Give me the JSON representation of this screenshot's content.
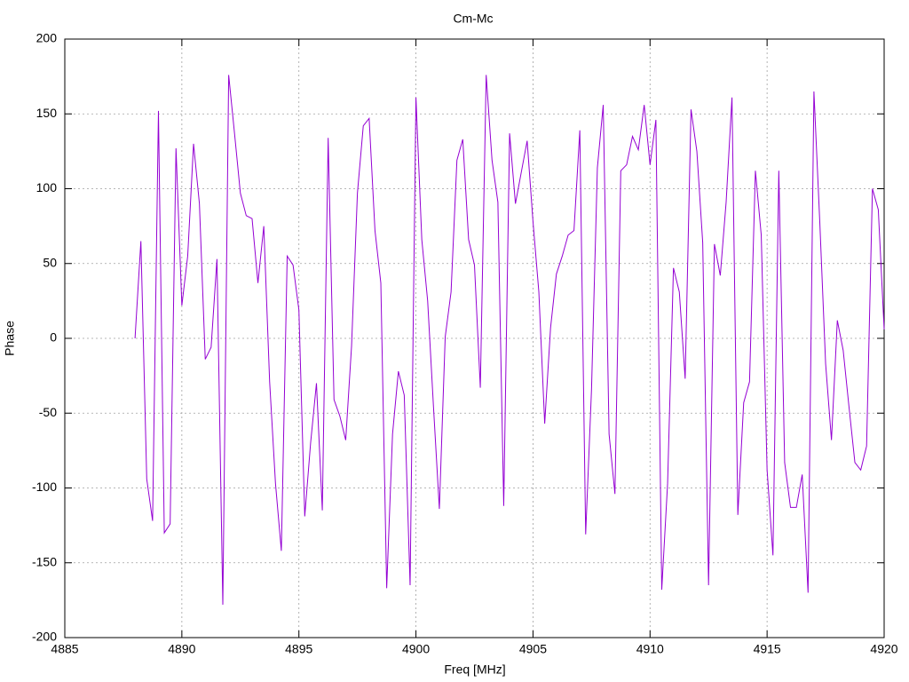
{
  "chart_data": {
    "type": "line",
    "title": "Cm-Mc",
    "x_label": "Freq [MHz]",
    "y_label": "Phase",
    "x": [
      4888,
      4888.25,
      4888.5,
      4888.75,
      4889,
      4889.25,
      4889.5,
      4889.75,
      4890,
      4890.25,
      4890.5,
      4890.75,
      4891,
      4891.25,
      4891.5,
      4891.75,
      4892,
      4892.25,
      4892.5,
      4892.75,
      4893,
      4893.25,
      4893.5,
      4893.75,
      4894,
      4894.25,
      4894.5,
      4894.75,
      4895,
      4895.25,
      4895.5,
      4895.75,
      4896,
      4896.25,
      4896.5,
      4896.75,
      4897,
      4897.25,
      4897.5,
      4897.75,
      4898,
      4898.25,
      4898.5,
      4898.75,
      4899,
      4899.25,
      4899.5,
      4899.75,
      4900,
      4900.25,
      4900.5,
      4900.75,
      4901,
      4901.25,
      4901.5,
      4901.75,
      4902,
      4902.25,
      4902.5,
      4902.75,
      4903,
      4903.25,
      4903.5,
      4903.75,
      4904,
      4904.25,
      4904.5,
      4904.75,
      4905,
      4905.25,
      4905.5,
      4905.75,
      4906,
      4906.25,
      4906.5,
      4906.75,
      4907,
      4907.25,
      4907.5,
      4907.75,
      4908,
      4908.25,
      4908.5,
      4908.75,
      4909,
      4909.25,
      4909.5,
      4909.75,
      4910,
      4910.25,
      4910.5,
      4910.75,
      4911,
      4911.25,
      4911.5,
      4911.75,
      4912,
      4912.25,
      4912.5,
      4912.75,
      4913,
      4913.25,
      4913.5,
      4913.75,
      4914,
      4914.25,
      4914.5,
      4914.75,
      4915,
      4915.25,
      4915.5,
      4915.75,
      4916,
      4916.25,
      4916.5,
      4916.75,
      4917,
      4917.25,
      4917.5,
      4917.75,
      4918,
      4918.25,
      4918.5,
      4918.75,
      4919,
      4919.25,
      4919.5,
      4919.75,
      4920
    ],
    "values": [
      0,
      65,
      -94,
      -122,
      152,
      -130,
      -124,
      127,
      22,
      55,
      130,
      90,
      -14,
      -6,
      53,
      -178,
      176,
      137,
      97,
      82,
      80,
      37,
      75,
      -29,
      -97,
      -142,
      55,
      49,
      19,
      -119,
      -70,
      -30,
      -115,
      134,
      -41,
      -52,
      -68,
      -5,
      97,
      142,
      147,
      72,
      37,
      -167,
      -64,
      -22,
      -38,
      -165,
      161,
      66,
      25,
      -46,
      -114,
      1,
      31,
      119,
      133,
      66,
      49,
      -33,
      176,
      119,
      91,
      -112,
      137,
      90,
      111,
      132,
      78,
      31,
      -57,
      7,
      43,
      55,
      69,
      72,
      139,
      -131,
      -34,
      114,
      156,
      -64,
      -104,
      112,
      116,
      135,
      126,
      156,
      116,
      146,
      -168,
      -97,
      47,
      31,
      -27,
      153,
      125,
      64,
      -165,
      63,
      42,
      91,
      161,
      -118,
      -43,
      -29,
      112,
      69,
      -88,
      -145,
      112,
      -83,
      -113,
      -113,
      -91,
      -170,
      165,
      78,
      -17,
      -68,
      12,
      -8,
      -46,
      -83,
      -88,
      -72,
      100,
      86,
      6
    ],
    "color": "#9400d3",
    "xlim": [
      4885,
      4920
    ],
    "xticks": [
      4885,
      4890,
      4895,
      4900,
      4905,
      4910,
      4915,
      4920
    ],
    "ylim": [
      -200,
      200
    ],
    "yticks": [
      -200,
      -150,
      -100,
      -50,
      0,
      50,
      100,
      150,
      200
    ],
    "grid": true
  }
}
